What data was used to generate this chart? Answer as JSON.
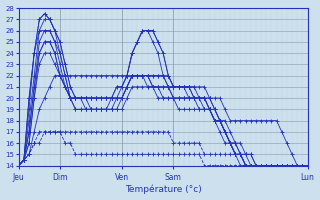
{
  "xlabel": "Température (°c)",
  "background_color": "#cce0ee",
  "plot_bg_color": "#cce0ee",
  "line_color": "#2233bb",
  "ylim": [
    14,
    28
  ],
  "yticks": [
    14,
    15,
    16,
    17,
    18,
    19,
    20,
    21,
    22,
    23,
    24,
    25,
    26,
    27,
    28
  ],
  "day_labels": [
    "Jeu",
    "Dim",
    "Ven",
    "Sam",
    "Lun"
  ],
  "day_positions": [
    0,
    8,
    20,
    30,
    56
  ],
  "num_points": 57,
  "line_styles": [
    "-",
    "-",
    "-",
    "-",
    "-",
    "-",
    "-",
    "-",
    "--",
    "--",
    "-"
  ],
  "series": [
    [
      14,
      14.5,
      18,
      22,
      26,
      27,
      27,
      26,
      25,
      23,
      21,
      20,
      20,
      20,
      20,
      20,
      20,
      20,
      20,
      20,
      20,
      21,
      22,
      22,
      22,
      22,
      21,
      21,
      21,
      21,
      21,
      21,
      21,
      21,
      21,
      21,
      21,
      20,
      20,
      20,
      19,
      18,
      18,
      18,
      18,
      18,
      18,
      18,
      18,
      18,
      18,
      17,
      16,
      15,
      14,
      14,
      14
    ],
    [
      14,
      14.5,
      19,
      24,
      27,
      27.5,
      27,
      26,
      25,
      23,
      21,
      20,
      20,
      20,
      20,
      20,
      20,
      20,
      20,
      20,
      20,
      21,
      22,
      22,
      22,
      22,
      22,
      22,
      22,
      21,
      21,
      21,
      21,
      21,
      21,
      20,
      20,
      20,
      19,
      18,
      17,
      16,
      16,
      15,
      15,
      15,
      14,
      14,
      14,
      14,
      14,
      14,
      14,
      14,
      14,
      14,
      14
    ],
    [
      14,
      14.5,
      20,
      24,
      27,
      27.5,
      27,
      26,
      24,
      22,
      20,
      20,
      20,
      20,
      19,
      19,
      19,
      19,
      19,
      19,
      19,
      20,
      21,
      21,
      21,
      21,
      21,
      21,
      20,
      20,
      20,
      19,
      19,
      19,
      19,
      19,
      19,
      19,
      18,
      18,
      17,
      16,
      15,
      15,
      14,
      14,
      14,
      14,
      14,
      14,
      14,
      14,
      14,
      14,
      14,
      14,
      14
    ],
    [
      14,
      14.5,
      17,
      21,
      25,
      26,
      26,
      25,
      23,
      21,
      20,
      19,
      19,
      19,
      19,
      19,
      19,
      19,
      19,
      19,
      20,
      21,
      22,
      22,
      22,
      22,
      21,
      21,
      21,
      21,
      20,
      20,
      20,
      20,
      20,
      20,
      20,
      19,
      19,
      18,
      18,
      17,
      16,
      16,
      15,
      15,
      14,
      14,
      14,
      14,
      14,
      14,
      14,
      14,
      14,
      14,
      14
    ],
    [
      14,
      14.5,
      16,
      20,
      24,
      25,
      25,
      24,
      22,
      21,
      20,
      19,
      19,
      19,
      19,
      19,
      19,
      19,
      19,
      20,
      20,
      21,
      22,
      22,
      22,
      21,
      21,
      20,
      20,
      20,
      20,
      20,
      20,
      20,
      20,
      20,
      19,
      19,
      18,
      18,
      17,
      16,
      16,
      15,
      15,
      14,
      14,
      14,
      14,
      14,
      14,
      14,
      14,
      14,
      14,
      14,
      14
    ],
    [
      14,
      14.5,
      17,
      21,
      24,
      25,
      25,
      24,
      22,
      21,
      20,
      20,
      20,
      19,
      19,
      19,
      19,
      19,
      20,
      20,
      21,
      22,
      24,
      25,
      26,
      26,
      26,
      25,
      24,
      22,
      21,
      21,
      21,
      20,
      20,
      20,
      20,
      19,
      18,
      18,
      17,
      16,
      15,
      15,
      14,
      14,
      14,
      14,
      14,
      14,
      14,
      14,
      14,
      14,
      14,
      14,
      14
    ],
    [
      14,
      14.5,
      16,
      20,
      23,
      24,
      24,
      23,
      22,
      21,
      20,
      20,
      20,
      20,
      20,
      20,
      20,
      20,
      20,
      21,
      21,
      22,
      24,
      25,
      26,
      26,
      25,
      24,
      22,
      21,
      20,
      20,
      20,
      20,
      20,
      19,
      19,
      19,
      18,
      18,
      17,
      16,
      15,
      15,
      14,
      14,
      14,
      14,
      14,
      14,
      14,
      14,
      14,
      14,
      14,
      14,
      14
    ],
    [
      14,
      14.5,
      15,
      17,
      19,
      20,
      21,
      22,
      22,
      22,
      22,
      22,
      22,
      22,
      22,
      22,
      22,
      22,
      22,
      22,
      22,
      22,
      22,
      22,
      22,
      22,
      22,
      22,
      22,
      22,
      21,
      21,
      21,
      21,
      20,
      20,
      20,
      19,
      18,
      17,
      16,
      16,
      15,
      15,
      14,
      14,
      14,
      14,
      14,
      14,
      14,
      14,
      14,
      14,
      14,
      14,
      14
    ],
    [
      14,
      14.5,
      15,
      16,
      16,
      17,
      17,
      17,
      17,
      17,
      17,
      17,
      17,
      17,
      17,
      17,
      17,
      17,
      17,
      17,
      17,
      17,
      17,
      17,
      17,
      17,
      17,
      17,
      17,
      17,
      16,
      16,
      16,
      16,
      16,
      16,
      15,
      15,
      15,
      15,
      15,
      15,
      15,
      15,
      14,
      14,
      14,
      14,
      14,
      14,
      14,
      14,
      14,
      14,
      14,
      14,
      14
    ],
    [
      14,
      14.5,
      15,
      16,
      17,
      17,
      17,
      17,
      17,
      16,
      16,
      15,
      15,
      15,
      15,
      15,
      15,
      15,
      15,
      15,
      15,
      15,
      15,
      15,
      15,
      15,
      15,
      15,
      15,
      15,
      15,
      15,
      15,
      15,
      15,
      15,
      14,
      14,
      14,
      14,
      14,
      14,
      14,
      14,
      14,
      14,
      14,
      14,
      14,
      14,
      14,
      14,
      14,
      14,
      14,
      14,
      14
    ],
    [
      14,
      14.5,
      20,
      24,
      26,
      26,
      26,
      25,
      24,
      22,
      20,
      20,
      20,
      20,
      20,
      20,
      20,
      20,
      20,
      21,
      21,
      22,
      24,
      25,
      26,
      26,
      26,
      25,
      24,
      22,
      21,
      21,
      21,
      21,
      20,
      20,
      20,
      20,
      19,
      18,
      17,
      16,
      15,
      14,
      14,
      14,
      14,
      14,
      14,
      14,
      14,
      14,
      14,
      14,
      14,
      14,
      14
    ]
  ]
}
